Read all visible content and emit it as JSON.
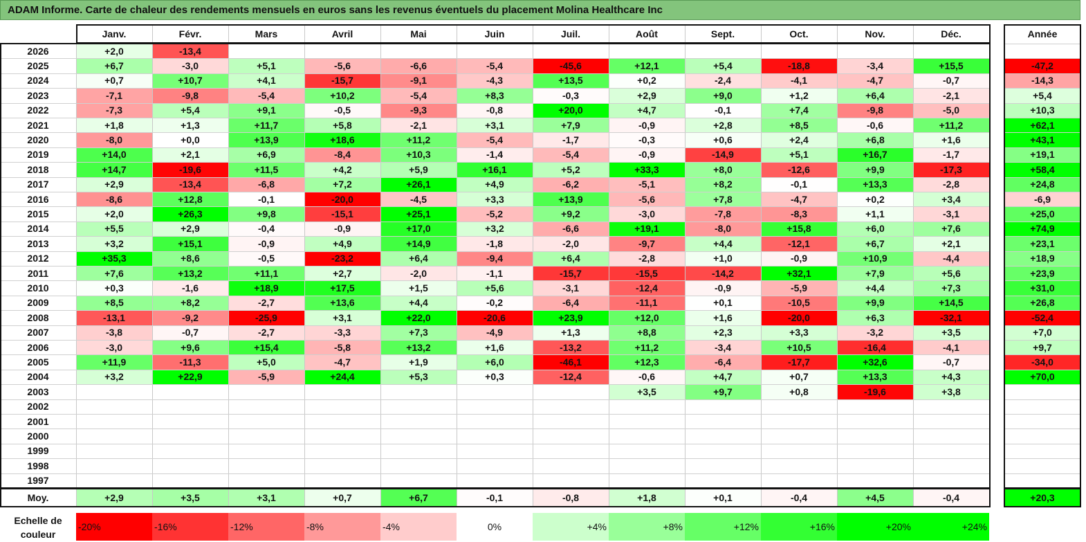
{
  "title": "ADAM Informe. Carte de chaleur des rendements mensuels en euros sans les revenus éventuels du placement Molina Healthcare Inc",
  "colors": {
    "title_bg": "#83c47c",
    "neutral": "#ffffff",
    "max_green": "#00ff00",
    "max_red": "#ff0000"
  },
  "chart_data": {
    "type": "heatmap",
    "title": "ADAM Informe. Carte de chaleur des rendements mensuels en euros sans les revenus éventuels du placement Molina Healthcare Inc",
    "months": [
      "Janv.",
      "Févr.",
      "Mars",
      "Avril",
      "Mai",
      "Juin",
      "Juil.",
      "Août",
      "Sept.",
      "Oct.",
      "Nov.",
      "Déc."
    ],
    "annual_header": "Année",
    "rows": [
      {
        "year": "2026",
        "values": [
          "+2,0",
          "-13,4",
          "",
          "",
          "",
          "",
          "",
          "",
          "",
          "",
          "",
          ""
        ],
        "annual": ""
      },
      {
        "year": "2025",
        "values": [
          "+6,7",
          "-3,0",
          "+5,1",
          "-5,6",
          "-6,6",
          "-5,4",
          "-45,6",
          "+12,1",
          "+5,4",
          "-18,8",
          "-3,4",
          "+15,5"
        ],
        "annual": "-47,2"
      },
      {
        "year": "2024",
        "values": [
          "+0,7",
          "+10,7",
          "+4,1",
          "-15,7",
          "-9,1",
          "-4,3",
          "+13,5",
          "+0,2",
          "-2,4",
          "-4,1",
          "-4,7",
          "-0,7"
        ],
        "annual": "-14,3"
      },
      {
        "year": "2023",
        "values": [
          "-7,1",
          "-9,8",
          "-5,4",
          "+10,2",
          "-5,4",
          "+8,3",
          "-0,3",
          "+2,9",
          "+9,0",
          "+1,2",
          "+6,4",
          "-2,1"
        ],
        "annual": "+5,4"
      },
      {
        "year": "2022",
        "values": [
          "-7,3",
          "+5,4",
          "+9,1",
          "-0,5",
          "-9,3",
          "-0,8",
          "+20,0",
          "+4,7",
          "-0,1",
          "+7,4",
          "-9,8",
          "-5,0"
        ],
        "annual": "+10,3"
      },
      {
        "year": "2021",
        "values": [
          "+1,8",
          "+1,3",
          "+11,7",
          "+5,8",
          "-2,1",
          "+3,1",
          "+7,9",
          "-0,9",
          "+2,8",
          "+8,5",
          "-0,6",
          "+11,2"
        ],
        "annual": "+62,1"
      },
      {
        "year": "2020",
        "values": [
          "-8,0",
          "+0,0",
          "+13,9",
          "+18,6",
          "+11,2",
          "-5,4",
          "-1,7",
          "-0,3",
          "+0,6",
          "+2,4",
          "+6,8",
          "+1,6"
        ],
        "annual": "+43,1"
      },
      {
        "year": "2019",
        "values": [
          "+14,0",
          "+2,1",
          "+6,9",
          "-8,4",
          "+10,3",
          "-1,4",
          "-5,4",
          "-0,9",
          "-14,9",
          "+5,1",
          "+16,7",
          "-1,7"
        ],
        "annual": "+19,1"
      },
      {
        "year": "2018",
        "values": [
          "+14,7",
          "-19,6",
          "+11,5",
          "+4,2",
          "+5,9",
          "+16,1",
          "+5,2",
          "+33,3",
          "+8,0",
          "-12,6",
          "+9,9",
          "-17,3"
        ],
        "annual": "+58,4"
      },
      {
        "year": "2017",
        "values": [
          "+2,9",
          "-13,4",
          "-6,8",
          "+7,2",
          "+26,1",
          "+4,9",
          "-6,2",
          "-5,1",
          "+8,2",
          "-0,1",
          "+13,3",
          "-2,8"
        ],
        "annual": "+24,8"
      },
      {
        "year": "2016",
        "values": [
          "-8,6",
          "+12,8",
          "-0,1",
          "-20,0",
          "-4,5",
          "+3,3",
          "+13,9",
          "-5,6",
          "+7,8",
          "-4,7",
          "+0,2",
          "+3,4"
        ],
        "annual": "-6,9"
      },
      {
        "year": "2015",
        "values": [
          "+2,0",
          "+26,3",
          "+9,8",
          "-15,1",
          "+25,1",
          "-5,2",
          "+9,2",
          "-3,0",
          "-7,8",
          "-8,3",
          "+1,1",
          "-3,1"
        ],
        "annual": "+25,0"
      },
      {
        "year": "2014",
        "values": [
          "+5,5",
          "+2,9",
          "-0,4",
          "-0,9",
          "+17,0",
          "+3,2",
          "-6,6",
          "+19,1",
          "-8,0",
          "+15,8",
          "+6,0",
          "+7,6"
        ],
        "annual": "+74,9"
      },
      {
        "year": "2013",
        "values": [
          "+3,2",
          "+15,1",
          "-0,9",
          "+4,9",
          "+14,9",
          "-1,8",
          "-2,0",
          "-9,7",
          "+4,4",
          "-12,1",
          "+6,7",
          "+2,1"
        ],
        "annual": "+23,1"
      },
      {
        "year": "2012",
        "values": [
          "+35,3",
          "+8,6",
          "-0,5",
          "-23,2",
          "+6,4",
          "-9,4",
          "+6,4",
          "-2,8",
          "+1,0",
          "-0,9",
          "+10,9",
          "-4,4"
        ],
        "annual": "+18,9"
      },
      {
        "year": "2011",
        "values": [
          "+7,6",
          "+13,2",
          "+11,1",
          "+2,7",
          "-2,0",
          "-1,1",
          "-15,7",
          "-15,5",
          "-14,2",
          "+32,1",
          "+7,9",
          "+5,6"
        ],
        "annual": "+23,9"
      },
      {
        "year": "2010",
        "values": [
          "+0,3",
          "-1,6",
          "+18,9",
          "+17,5",
          "+1,5",
          "+5,6",
          "-3,1",
          "-12,4",
          "-0,9",
          "-5,9",
          "+4,4",
          "+7,3"
        ],
        "annual": "+31,0"
      },
      {
        "year": "2009",
        "values": [
          "+8,5",
          "+8,2",
          "-2,7",
          "+13,6",
          "+4,4",
          "-0,2",
          "-6,4",
          "-11,1",
          "+0,1",
          "-10,5",
          "+9,9",
          "+14,5"
        ],
        "annual": "+26,8"
      },
      {
        "year": "2008",
        "values": [
          "-13,1",
          "-9,2",
          "-25,9",
          "+3,1",
          "+22,0",
          "-20,6",
          "+23,9",
          "+12,0",
          "+1,6",
          "-20,0",
          "+6,3",
          "-32,1"
        ],
        "annual": "-52,4"
      },
      {
        "year": "2007",
        "values": [
          "-3,8",
          "-0,7",
          "-2,7",
          "-3,3",
          "+7,3",
          "-4,9",
          "+1,3",
          "+8,8",
          "+2,3",
          "+3,3",
          "-3,2",
          "+3,5"
        ],
        "annual": "+7,0"
      },
      {
        "year": "2006",
        "values": [
          "-3,0",
          "+9,6",
          "+15,4",
          "-5,8",
          "+13,2",
          "+1,6",
          "-13,2",
          "+11,2",
          "-3,4",
          "+10,5",
          "-16,4",
          "-4,1"
        ],
        "annual": "+9,7"
      },
      {
        "year": "2005",
        "values": [
          "+11,9",
          "-11,3",
          "+5,0",
          "-4,7",
          "+1,9",
          "+6,0",
          "-46,1",
          "+12,3",
          "-6,4",
          "-17,7",
          "+32,6",
          "-0,7"
        ],
        "annual": "-34,0"
      },
      {
        "year": "2004",
        "values": [
          "+3,2",
          "+22,9",
          "-5,9",
          "+24,4",
          "+5,3",
          "+0,3",
          "-12,4",
          "-0,6",
          "+4,7",
          "+0,7",
          "+13,3",
          "+4,3"
        ],
        "annual": "+70,0"
      },
      {
        "year": "2003",
        "values": [
          "",
          "",
          "",
          "",
          "",
          "",
          "",
          "+3,5",
          "+9,7",
          "+0,8",
          "-19,6",
          "+3,8"
        ],
        "annual": ""
      },
      {
        "year": "2002",
        "values": [
          "",
          "",
          "",
          "",
          "",
          "",
          "",
          "",
          "",
          "",
          "",
          ""
        ],
        "annual": ""
      },
      {
        "year": "2001",
        "values": [
          "",
          "",
          "",
          "",
          "",
          "",
          "",
          "",
          "",
          "",
          "",
          ""
        ],
        "annual": ""
      },
      {
        "year": "2000",
        "values": [
          "",
          "",
          "",
          "",
          "",
          "",
          "",
          "",
          "",
          "",
          "",
          ""
        ],
        "annual": ""
      },
      {
        "year": "1999",
        "values": [
          "",
          "",
          "",
          "",
          "",
          "",
          "",
          "",
          "",
          "",
          "",
          ""
        ],
        "annual": ""
      },
      {
        "year": "1998",
        "values": [
          "",
          "",
          "",
          "",
          "",
          "",
          "",
          "",
          "",
          "",
          "",
          ""
        ],
        "annual": ""
      },
      {
        "year": "1997",
        "values": [
          "",
          "",
          "",
          "",
          "",
          "",
          "",
          "",
          "",
          "",
          "",
          ""
        ],
        "annual": ""
      }
    ],
    "average": {
      "label": "Moy.",
      "values": [
        "+2,9",
        "+3,5",
        "+3,1",
        "+0,7",
        "+6,7",
        "-0,1",
        "-0,8",
        "+1,8",
        "+0,1",
        "-0,4",
        "+4,5",
        "-0,4"
      ],
      "annual": "+20,3"
    },
    "color_scale": {
      "label": "Echelle de couleur",
      "stops": [
        "-20%",
        "-16%",
        "-12%",
        "-8%",
        "-4%",
        "0%",
        "+4%",
        "+8%",
        "+12%",
        "+16%",
        "+20%",
        "+24%"
      ]
    }
  }
}
